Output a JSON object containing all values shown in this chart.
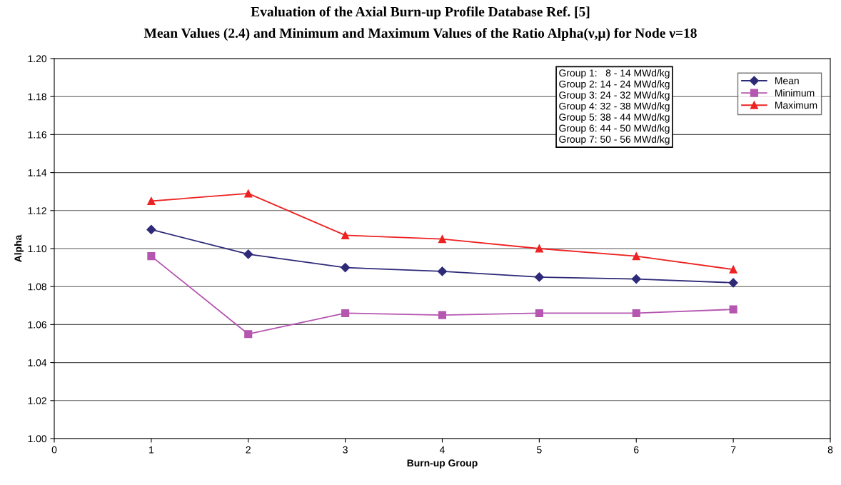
{
  "chart_data": {
    "type": "line",
    "title": "Evaluation of the Axial Burn-up Profile Database Ref. [5]",
    "subtitle": "Mean Values (2.4) and Minimum and Maximum Values of the Ratio Alpha(ν,μ) for Node ν=18",
    "xlabel": "Burn-up Group",
    "ylabel": "Alpha",
    "x": [
      1,
      2,
      3,
      4,
      5,
      6,
      7
    ],
    "series": [
      {
        "name": "Mean",
        "color": "#2e2a78",
        "marker": "diamond",
        "values": [
          1.11,
          1.097,
          1.09,
          1.088,
          1.085,
          1.084,
          1.082
        ]
      },
      {
        "name": "Minimum",
        "color": "#b556b0",
        "marker": "square",
        "values": [
          1.096,
          1.055,
          1.066,
          1.065,
          1.066,
          1.066,
          1.068
        ]
      },
      {
        "name": "Maximum",
        "color": "#ee2222",
        "marker": "triangle",
        "values": [
          1.125,
          1.129,
          1.107,
          1.105,
          1.1,
          1.096,
          1.089
        ]
      }
    ],
    "xlim": [
      0,
      8
    ],
    "xticks": [
      0,
      1,
      2,
      3,
      4,
      5,
      6,
      7,
      8
    ],
    "ylim": [
      1.0,
      1.2
    ],
    "yticks": [
      {
        "value": 1.0,
        "label": "1.00"
      },
      {
        "value": 1.02,
        "label": "1.02"
      },
      {
        "value": 1.04,
        "label": "1.04"
      },
      {
        "value": 1.06,
        "label": "1.06"
      },
      {
        "value": 1.08,
        "label": "1.08"
      },
      {
        "value": 1.1,
        "label": "1.10"
      },
      {
        "value": 1.12,
        "label": "1.12"
      },
      {
        "value": 1.14,
        "label": "1.14"
      },
      {
        "value": 1.16,
        "label": "1.16"
      },
      {
        "value": 1.18,
        "label": "1.18"
      },
      {
        "value": 1.2,
        "label": "1.20"
      }
    ],
    "grid": "y",
    "legend": "top right",
    "line_style": "solid",
    "annotations": [
      "Group 1:   8 - 14 MWd/kg",
      "Group 2: 14 - 24 MWd/kg",
      "Group 3: 24 - 32 MWd/kg",
      "Group 4: 32 - 38 MWd/kg",
      "Group 5: 38 - 44 MWd/kg",
      "Group 6: 44 - 50 MWd/kg",
      "Group 7: 50 - 56 MWd/kg"
    ]
  }
}
